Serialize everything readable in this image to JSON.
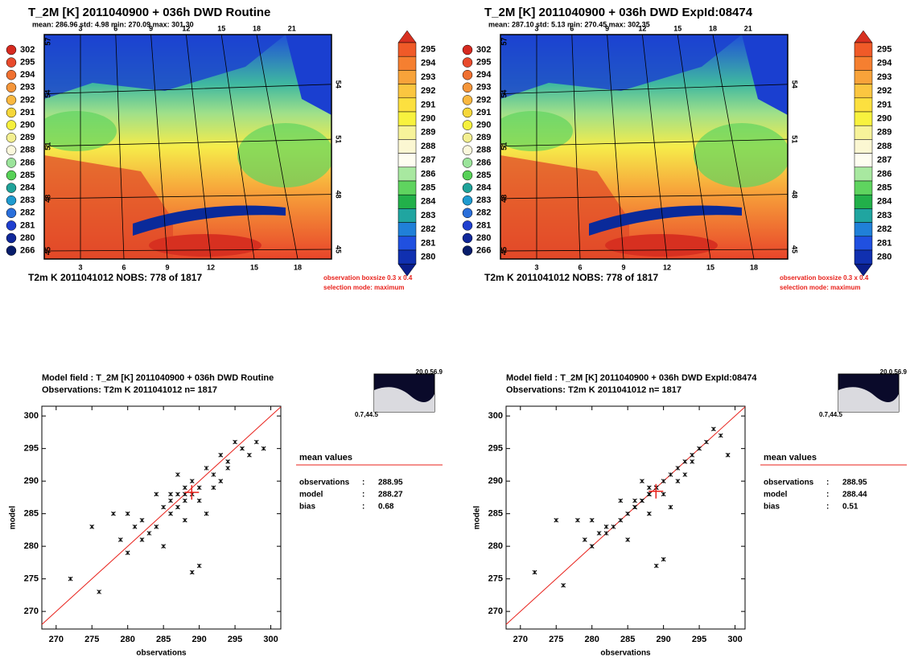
{
  "chart_data": [
    {
      "type": "map",
      "title": "T_2M [K]   2011040900 +  036h  DWD Routine",
      "stats": "mean:  286.96  std:   4.98  min:  270.09   max:  301.30",
      "obs_legend": [
        {
          "value": 302,
          "color": "#d62a20"
        },
        {
          "value": 295,
          "color": "#e84a2c"
        },
        {
          "value": 294,
          "color": "#f07030"
        },
        {
          "value": 293,
          "color": "#f5963a"
        },
        {
          "value": 292,
          "color": "#fab840"
        },
        {
          "value": 291,
          "color": "#f6d73a"
        },
        {
          "value": 290,
          "color": "#f6f03c"
        },
        {
          "value": 289,
          "color": "#f3ef90"
        },
        {
          "value": 288,
          "color": "#fbf8dc"
        },
        {
          "value": 286,
          "color": "#9be49b"
        },
        {
          "value": 285,
          "color": "#57d157"
        },
        {
          "value": 284,
          "color": "#1fa39a"
        },
        {
          "value": 283,
          "color": "#1f9bd0"
        },
        {
          "value": 282,
          "color": "#2a6fdb"
        },
        {
          "value": 281,
          "color": "#1f3fcf"
        },
        {
          "value": 280,
          "color": "#10289a"
        },
        {
          "value": 266,
          "color": "#081d6b"
        }
      ],
      "colorbar": [
        {
          "value": 295,
          "color": "#f05a28"
        },
        {
          "value": 294,
          "color": "#f57f30"
        },
        {
          "value": 293,
          "color": "#f8a33a"
        },
        {
          "value": 292,
          "color": "#fbc640"
        },
        {
          "value": 291,
          "color": "#fce03f"
        },
        {
          "value": 290,
          "color": "#f8f23e"
        },
        {
          "value": 289,
          "color": "#f7f39a"
        },
        {
          "value": 288,
          "color": "#fbf7d2"
        },
        {
          "value": 287,
          "color": "#fefdf0"
        },
        {
          "value": 286,
          "color": "#a8e8a0"
        },
        {
          "value": 285,
          "color": "#5fd45f"
        },
        {
          "value": 284,
          "color": "#22b04a"
        },
        {
          "value": 283,
          "color": "#20a5a0"
        },
        {
          "value": 282,
          "color": "#2080d8"
        },
        {
          "value": 281,
          "color": "#2050e0"
        },
        {
          "value": 280,
          "color": "#1030b0"
        }
      ],
      "lon_ticks_bottom": [
        3,
        6,
        9,
        12,
        15,
        18
      ],
      "lon_ticks_top": [
        3,
        6,
        9,
        12,
        15,
        18,
        21
      ],
      "lat_ticks_left": [
        45,
        48,
        51,
        54,
        57
      ],
      "lat_ticks_right": [
        45,
        48,
        51,
        54
      ],
      "footer": "T2m K  2011041012    NOBS:  778 of  1817",
      "note_boxsize": "observation boxsize  0.3 x 0.4",
      "note_selection": "selection mode: maximum"
    },
    {
      "type": "map",
      "title": "T_2M [K]   2011040900 +  036h  DWD ExpId:08474",
      "stats": "mean:  287.10  std:   5.13  min:  270.45   max:  302.35",
      "obs_legend": [
        {
          "value": 302,
          "color": "#d62a20"
        },
        {
          "value": 295,
          "color": "#e84a2c"
        },
        {
          "value": 294,
          "color": "#f07030"
        },
        {
          "value": 293,
          "color": "#f5963a"
        },
        {
          "value": 292,
          "color": "#fab840"
        },
        {
          "value": 291,
          "color": "#f6d73a"
        },
        {
          "value": 290,
          "color": "#f6f03c"
        },
        {
          "value": 289,
          "color": "#f3ef90"
        },
        {
          "value": 288,
          "color": "#fbf8dc"
        },
        {
          "value": 286,
          "color": "#9be49b"
        },
        {
          "value": 285,
          "color": "#57d157"
        },
        {
          "value": 284,
          "color": "#1fa39a"
        },
        {
          "value": 283,
          "color": "#1f9bd0"
        },
        {
          "value": 282,
          "color": "#2a6fdb"
        },
        {
          "value": 281,
          "color": "#1f3fcf"
        },
        {
          "value": 280,
          "color": "#10289a"
        },
        {
          "value": 266,
          "color": "#081d6b"
        }
      ],
      "colorbar": [
        {
          "value": 295,
          "color": "#f05a28"
        },
        {
          "value": 294,
          "color": "#f57f30"
        },
        {
          "value": 293,
          "color": "#f8a33a"
        },
        {
          "value": 292,
          "color": "#fbc640"
        },
        {
          "value": 291,
          "color": "#fce03f"
        },
        {
          "value": 290,
          "color": "#f8f23e"
        },
        {
          "value": 289,
          "color": "#f7f39a"
        },
        {
          "value": 288,
          "color": "#fbf7d2"
        },
        {
          "value": 287,
          "color": "#fefdf0"
        },
        {
          "value": 286,
          "color": "#a8e8a0"
        },
        {
          "value": 285,
          "color": "#5fd45f"
        },
        {
          "value": 284,
          "color": "#22b04a"
        },
        {
          "value": 283,
          "color": "#20a5a0"
        },
        {
          "value": 282,
          "color": "#2080d8"
        },
        {
          "value": 281,
          "color": "#2050e0"
        },
        {
          "value": 280,
          "color": "#1030b0"
        }
      ],
      "lon_ticks_bottom": [
        3,
        6,
        9,
        12,
        15,
        18
      ],
      "lon_ticks_top": [
        3,
        6,
        9,
        12,
        15,
        18,
        21
      ],
      "lat_ticks_left": [
        45,
        48,
        51,
        54,
        57
      ],
      "lat_ticks_right": [
        45,
        48,
        51,
        54
      ],
      "footer": "T2m K  2011041012    NOBS:  778 of  1817",
      "note_boxsize": "observation boxsize  0.3 x 0.4",
      "note_selection": "selection mode: maximum"
    },
    {
      "type": "scatter",
      "title_model": "Model field     : T_2M [K]   2011040900 +  036h  DWD Routine",
      "title_obs": "Observations: T2m K  2011041012      n= 1817",
      "xlabel": "observations",
      "ylabel": "model",
      "xlim": [
        268,
        301.4
      ],
      "ylim": [
        267.3,
        301.5
      ],
      "xticks": [
        270,
        275,
        280,
        285,
        290,
        295,
        300
      ],
      "yticks": [
        270,
        275,
        280,
        285,
        290,
        295,
        300
      ],
      "color": "#000000",
      "line_color": "#e8201a",
      "x": [
        284,
        285,
        286,
        287,
        288,
        289,
        290,
        291,
        292,
        293,
        294,
        295,
        283,
        282,
        281,
        280,
        279,
        286,
        288,
        290,
        292,
        289,
        287,
        285,
        291,
        293,
        296,
        297,
        275,
        272,
        278,
        276,
        290,
        288,
        286,
        284,
        282,
        280,
        294,
        298,
        299,
        288,
        289,
        287
      ],
      "values": [
        283,
        286,
        285,
        288,
        287,
        290,
        289,
        292,
        291,
        294,
        293,
        296,
        282,
        281,
        283,
        279,
        281,
        288,
        284,
        287,
        289,
        276,
        291,
        280,
        285,
        290,
        295,
        294,
        283,
        275,
        285,
        273,
        277,
        288,
        287,
        288,
        284,
        285,
        292,
        296,
        295,
        289,
        288,
        286
      ],
      "mean_title": "mean values",
      "mean_rows": [
        {
          "name": "observations",
          "sep": ":",
          "value": 288.95
        },
        {
          "name": "model",
          "sep": ":",
          "value": 288.27
        },
        {
          "name": "bias",
          "sep": ":",
          "value": 0.68
        }
      ],
      "inset_ne": "20.0,56.9",
      "inset_sw": "0.7,44.5"
    },
    {
      "type": "scatter",
      "title_model": "Model field     : T_2M [K]   2011040900 +  036h  DWD ExpId:08474",
      "title_obs": "Observations: T2m K  2011041012      n= 1817",
      "xlabel": "observations",
      "ylabel": "model",
      "xlim": [
        268,
        301.4
      ],
      "ylim": [
        267.3,
        301.5
      ],
      "xticks": [
        270,
        275,
        280,
        285,
        290,
        295,
        300
      ],
      "yticks": [
        270,
        275,
        280,
        285,
        290,
        295,
        300
      ],
      "color": "#000000",
      "line_color": "#e8201a",
      "x": [
        284,
        285,
        286,
        287,
        288,
        289,
        290,
        291,
        292,
        293,
        294,
        295,
        283,
        282,
        281,
        280,
        279,
        286,
        288,
        290,
        292,
        289,
        287,
        285,
        291,
        293,
        296,
        297,
        275,
        272,
        278,
        276,
        290,
        288,
        286,
        284,
        282,
        280,
        294,
        298,
        299,
        288,
        289,
        287
      ],
      "values": [
        284,
        285,
        286,
        287,
        288,
        289,
        290,
        291,
        292,
        293,
        294,
        295,
        283,
        282,
        282,
        280,
        281,
        287,
        285,
        288,
        290,
        277,
        290,
        281,
        286,
        291,
        296,
        298,
        284,
        276,
        284,
        274,
        278,
        289,
        286,
        287,
        283,
        284,
        293,
        297,
        294,
        288,
        289,
        287
      ],
      "mean_title": "mean values",
      "mean_rows": [
        {
          "name": "observations",
          "sep": ":",
          "value": 288.95
        },
        {
          "name": "model",
          "sep": ":",
          "value": 288.44
        },
        {
          "name": "bias",
          "sep": ":",
          "value": 0.51
        }
      ],
      "inset_ne": "20.0,56.9",
      "inset_sw": "0.7,44.5"
    }
  ]
}
